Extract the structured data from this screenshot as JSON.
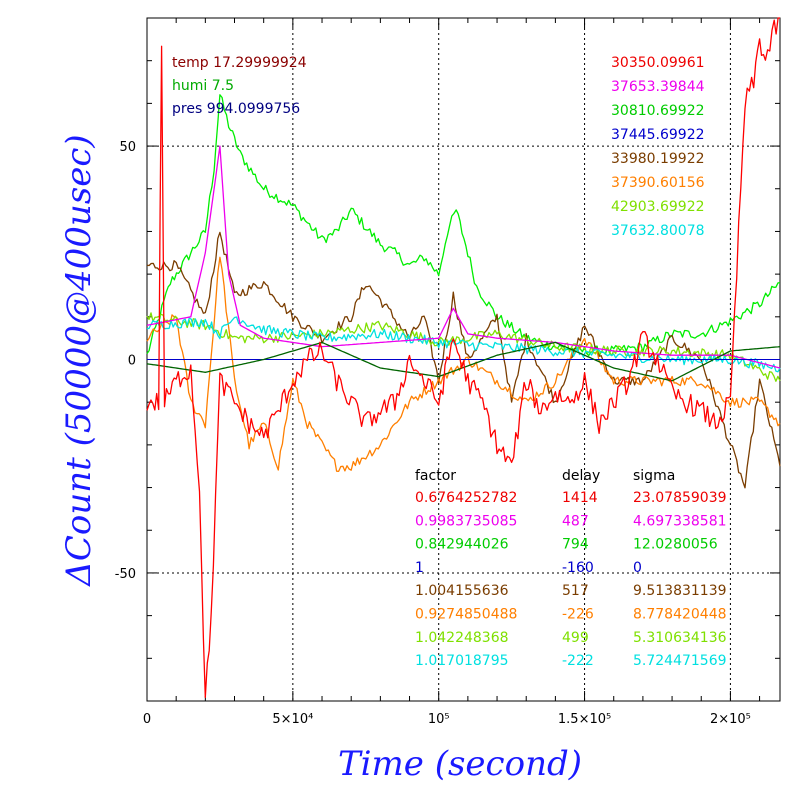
{
  "chart_data": {
    "type": "line",
    "xlabel": "Time (second)",
    "ylabel": "ΔCount (50000@400usec)",
    "xlim": [
      0,
      217000
    ],
    "ylim": [
      -80,
      80
    ],
    "grid": "dotted",
    "x_tick_labels": [
      "0",
      "5×10⁴",
      "10⁵",
      "1.5×10⁵",
      "2×10⁵"
    ],
    "x_ticks": [
      0,
      50000,
      100000,
      150000,
      200000
    ],
    "y_tick_labels": [
      "50",
      "0",
      "-50"
    ],
    "y_ticks": [
      50,
      0,
      -50
    ],
    "env": [
      {
        "label": "temp",
        "value": "17.29999924",
        "color": "#8b0000"
      },
      {
        "label": "humi",
        "value": "7.5",
        "color": "#00aa00"
      },
      {
        "label": "pres",
        "value": "994.0999756",
        "color": "#000080"
      }
    ],
    "right_values": [
      {
        "value": "30350.09961",
        "color": "#ee0000"
      },
      {
        "value": "37653.39844",
        "color": "#ee00ee"
      },
      {
        "value": "30810.69922",
        "color": "#00cc00"
      },
      {
        "value": "37445.69922",
        "color": "#0000cc"
      },
      {
        "value": "33980.19922",
        "color": "#7a3d00"
      },
      {
        "value": "37390.60156",
        "color": "#ff7f00"
      },
      {
        "value": "42903.69922",
        "color": "#7fe000"
      },
      {
        "value": "37632.80078",
        "color": "#00e0e0"
      }
    ],
    "table_headers": [
      "factor",
      "delay",
      "sigma"
    ],
    "table_rows": [
      {
        "factor": "0.6764252782",
        "delay": "1414",
        "sigma": "23.07859039",
        "color": "#ee0000"
      },
      {
        "factor": "0.9983735085",
        "delay": "487",
        "sigma": "4.697338581",
        "color": "#ee00ee"
      },
      {
        "factor": "0.842944026",
        "delay": "794",
        "sigma": "12.0280056",
        "color": "#00cc00"
      },
      {
        "factor": "1",
        "delay": "-160",
        "sigma": "0",
        "color": "#0000cc"
      },
      {
        "factor": "1.004155636",
        "delay": "517",
        "sigma": "9.513831139",
        "color": "#7a3d00"
      },
      {
        "factor": "0.9274850488",
        "delay": "-226",
        "sigma": "8.778420448",
        "color": "#ff7f00"
      },
      {
        "factor": "1.042248368",
        "delay": "499",
        "sigma": "5.310634136",
        "color": "#7fe000"
      },
      {
        "factor": "1.017018795",
        "delay": "-222",
        "sigma": "5.724471569",
        "color": "#00e0e0"
      }
    ],
    "series": [
      {
        "color": "#00ee00",
        "x": [
          0,
          8000,
          15000,
          20000,
          23000,
          25000,
          28000,
          32000,
          40000,
          50000,
          60000,
          65000,
          70000,
          80000,
          85000,
          90000,
          95000,
          100000,
          103000,
          106000,
          110000,
          113000,
          120000,
          130000,
          140000,
          150000,
          160000,
          170000,
          180000,
          190000,
          200000,
          210000,
          217000
        ],
        "y": [
          1,
          18,
          25,
          30,
          45,
          62,
          55,
          48,
          40,
          36,
          28,
          30,
          35,
          27,
          25,
          22,
          24,
          20,
          30,
          35,
          25,
          17,
          10,
          5,
          3,
          2,
          2,
          3,
          6,
          6,
          9,
          13,
          18
        ]
      },
      {
        "color": "#7a3d00",
        "x": [
          0,
          10000,
          20000,
          25000,
          30000,
          40000,
          50000,
          60000,
          70000,
          75000,
          80000,
          90000,
          95000,
          100000,
          105000,
          110000,
          120000,
          125000,
          130000,
          140000,
          150000,
          160000,
          170000,
          180000,
          190000,
          200000,
          205000,
          210000,
          217000
        ],
        "y": [
          22,
          22,
          10,
          30,
          15,
          18,
          10,
          5,
          10,
          18,
          14,
          5,
          10,
          -5,
          15,
          0,
          10,
          -10,
          5,
          -10,
          8,
          -5,
          -5,
          5,
          0,
          -20,
          -30,
          -5,
          -25
        ]
      },
      {
        "color": "#ff7f00",
        "x": [
          0,
          10000,
          15000,
          20000,
          25000,
          30000,
          35000,
          40000,
          45000,
          50000,
          55000,
          60000,
          65000,
          70000,
          80000,
          90000,
          100000,
          110000,
          120000,
          130000,
          140000,
          150000,
          160000,
          170000,
          180000,
          190000,
          200000,
          210000,
          217000
        ],
        "y": [
          5,
          10,
          -10,
          -15,
          25,
          -5,
          -20,
          -15,
          -25,
          -5,
          -15,
          -20,
          -25,
          -25,
          -20,
          -10,
          -5,
          0,
          -5,
          -10,
          -5,
          5,
          -5,
          -5,
          -5,
          -5,
          -10,
          -10,
          -15
        ]
      },
      {
        "color": "#7fe000",
        "x": [
          0,
          20000,
          30000,
          40000,
          60000,
          80000,
          100000,
          120000,
          140000,
          160000,
          180000,
          200000,
          217000
        ],
        "y": [
          10,
          8,
          5,
          5,
          6,
          8,
          4,
          6,
          3,
          2,
          2,
          1,
          -5
        ]
      },
      {
        "color": "#00e0e0",
        "x": [
          0,
          20000,
          25000,
          30000,
          40000,
          60000,
          80000,
          100000,
          120000,
          140000,
          160000,
          180000,
          200000,
          217000
        ],
        "y": [
          8,
          9,
          6,
          10,
          7,
          5,
          6,
          4,
          3,
          2,
          1,
          0,
          0,
          -2
        ]
      },
      {
        "color": "#ee00ee",
        "x": [
          0,
          15000,
          20000,
          25000,
          28000,
          32000,
          40000,
          60000,
          80000,
          100000,
          105000,
          110000,
          120000,
          140000,
          160000,
          180000,
          200000,
          217000
        ],
        "y": [
          8,
          10,
          25,
          50,
          20,
          8,
          5,
          3,
          4,
          5,
          12,
          6,
          5,
          4,
          2,
          1,
          1,
          -2
        ]
      },
      {
        "color": "#0000cc",
        "x": [
          0,
          50000,
          100000,
          150000,
          200000,
          217000
        ],
        "y": [
          0,
          0,
          0,
          0,
          0,
          0
        ]
      },
      {
        "color": "#006400",
        "x": [
          0,
          20000,
          40000,
          60000,
          80000,
          100000,
          120000,
          140000,
          160000,
          180000,
          200000,
          217000
        ],
        "y": [
          -1,
          -3,
          0,
          4,
          -2,
          -4,
          1,
          4,
          -2,
          -5,
          2,
          3
        ]
      },
      {
        "color": "#ff0000",
        "x": [
          0,
          4000,
          5000,
          6000,
          10000,
          15000,
          18000,
          20000,
          22000,
          25000,
          30000,
          35000,
          40000,
          45000,
          50000,
          55000,
          60000,
          65000,
          70000,
          75000,
          80000,
          85000,
          90000,
          95000,
          100000,
          105000,
          110000,
          115000,
          120000,
          125000,
          130000,
          135000,
          140000,
          145000,
          150000,
          155000,
          160000,
          165000,
          170000,
          175000,
          180000,
          185000,
          190000,
          195000,
          200000,
          205000,
          208000,
          210000,
          212000,
          215000,
          217000
        ],
        "y": [
          -10,
          -10,
          75,
          -10,
          -5,
          -2,
          -30,
          -80,
          -60,
          -5,
          -10,
          -15,
          -18,
          -12,
          -5,
          0,
          2,
          -5,
          -10,
          -15,
          -12,
          -10,
          0,
          -5,
          -10,
          5,
          -5,
          -10,
          -20,
          -25,
          -5,
          -12,
          -8,
          -10,
          -5,
          -15,
          -10,
          -5,
          5,
          0,
          -8,
          -10,
          -12,
          -15,
          -10,
          60,
          65,
          75,
          70,
          77,
          80
        ]
      }
    ]
  }
}
